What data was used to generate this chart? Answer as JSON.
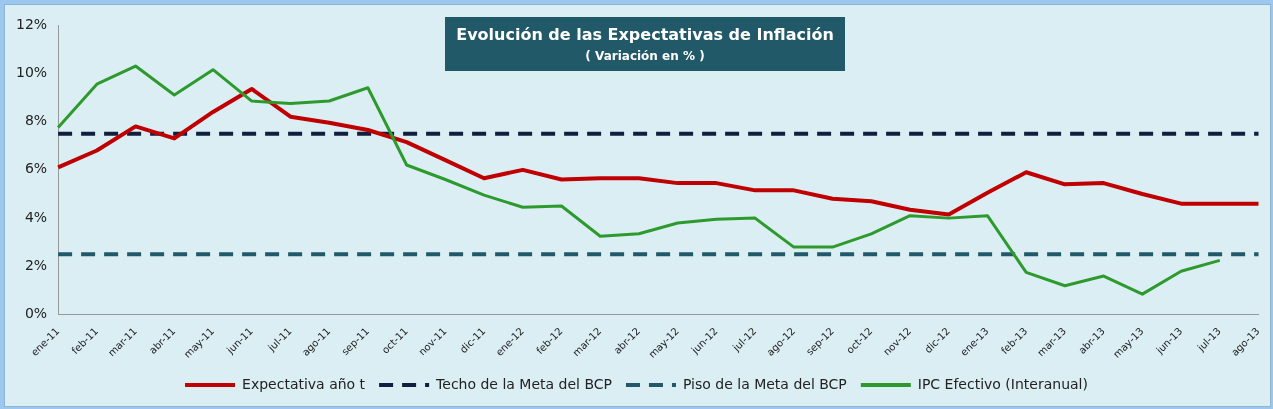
{
  "chart_data": {
    "type": "line",
    "title": "Evolución de las Expectativas de Inflación",
    "subtitle": "( Variación  en % )",
    "categories": [
      "ene-11",
      "feb-11",
      "mar-11",
      "abr-11",
      "may-11",
      "jun-11",
      "jul-11",
      "ago-11",
      "sep-11",
      "oct-11",
      "nov-11",
      "dic-11",
      "ene-12",
      "feb-12",
      "mar-12",
      "abr-12",
      "may-12",
      "jun-12",
      "jul-12",
      "ago-12",
      "sep-12",
      "oct-12",
      "nov-12",
      "dic-12",
      "ene-13",
      "feb-13",
      "mar-13",
      "abr-13",
      "may-13",
      "jun-13",
      "jul-13",
      "ago-13"
    ],
    "series": [
      {
        "name": "Expectativa año t",
        "color": "#c00000",
        "values": [
          6.1,
          6.8,
          7.8,
          7.3,
          8.4,
          9.35,
          8.2,
          7.95,
          7.65,
          7.15,
          6.4,
          5.65,
          6.0,
          5.6,
          5.65,
          5.65,
          5.45,
          5.45,
          5.15,
          5.15,
          4.8,
          4.7,
          4.35,
          4.15,
          5.05,
          5.9,
          5.4,
          5.45,
          5.0,
          4.6,
          4.6,
          4.6
        ]
      },
      {
        "name": "IPC Efectivo (Interanual)",
        "color": "#2e9a2e",
        "values": [
          7.75,
          9.55,
          10.3,
          9.1,
          10.15,
          8.85,
          8.75,
          8.85,
          9.4,
          6.2,
          5.6,
          4.95,
          4.45,
          4.5,
          3.25,
          3.35,
          3.8,
          3.95,
          4.0,
          2.8,
          2.8,
          3.35,
          4.1,
          4.0,
          4.1,
          1.75,
          1.2,
          1.6,
          0.85,
          1.8,
          2.25,
          null
        ]
      }
    ],
    "ref_lines": [
      {
        "axis": "y",
        "value": 7.5,
        "label": "Techo de la Meta del BCP",
        "color": "#0f1f3d",
        "line_style": "dashed"
      },
      {
        "axis": "y",
        "value": 2.5,
        "label": "Piso de la Meta del BCP",
        "color": "#215968",
        "line_style": "dashed"
      }
    ],
    "ylim": [
      0,
      12
    ],
    "yticks": [
      {
        "value": 0,
        "label": "0%"
      },
      {
        "value": 2,
        "label": "2%"
      },
      {
        "value": 4,
        "label": "4%"
      },
      {
        "value": 6,
        "label": "6%"
      },
      {
        "value": 8,
        "label": "8%"
      },
      {
        "value": 10,
        "label": "10%"
      },
      {
        "value": 12,
        "label": "12%"
      }
    ],
    "grid": false,
    "legend": "bottom",
    "marker": "none",
    "line_style": "solid"
  }
}
